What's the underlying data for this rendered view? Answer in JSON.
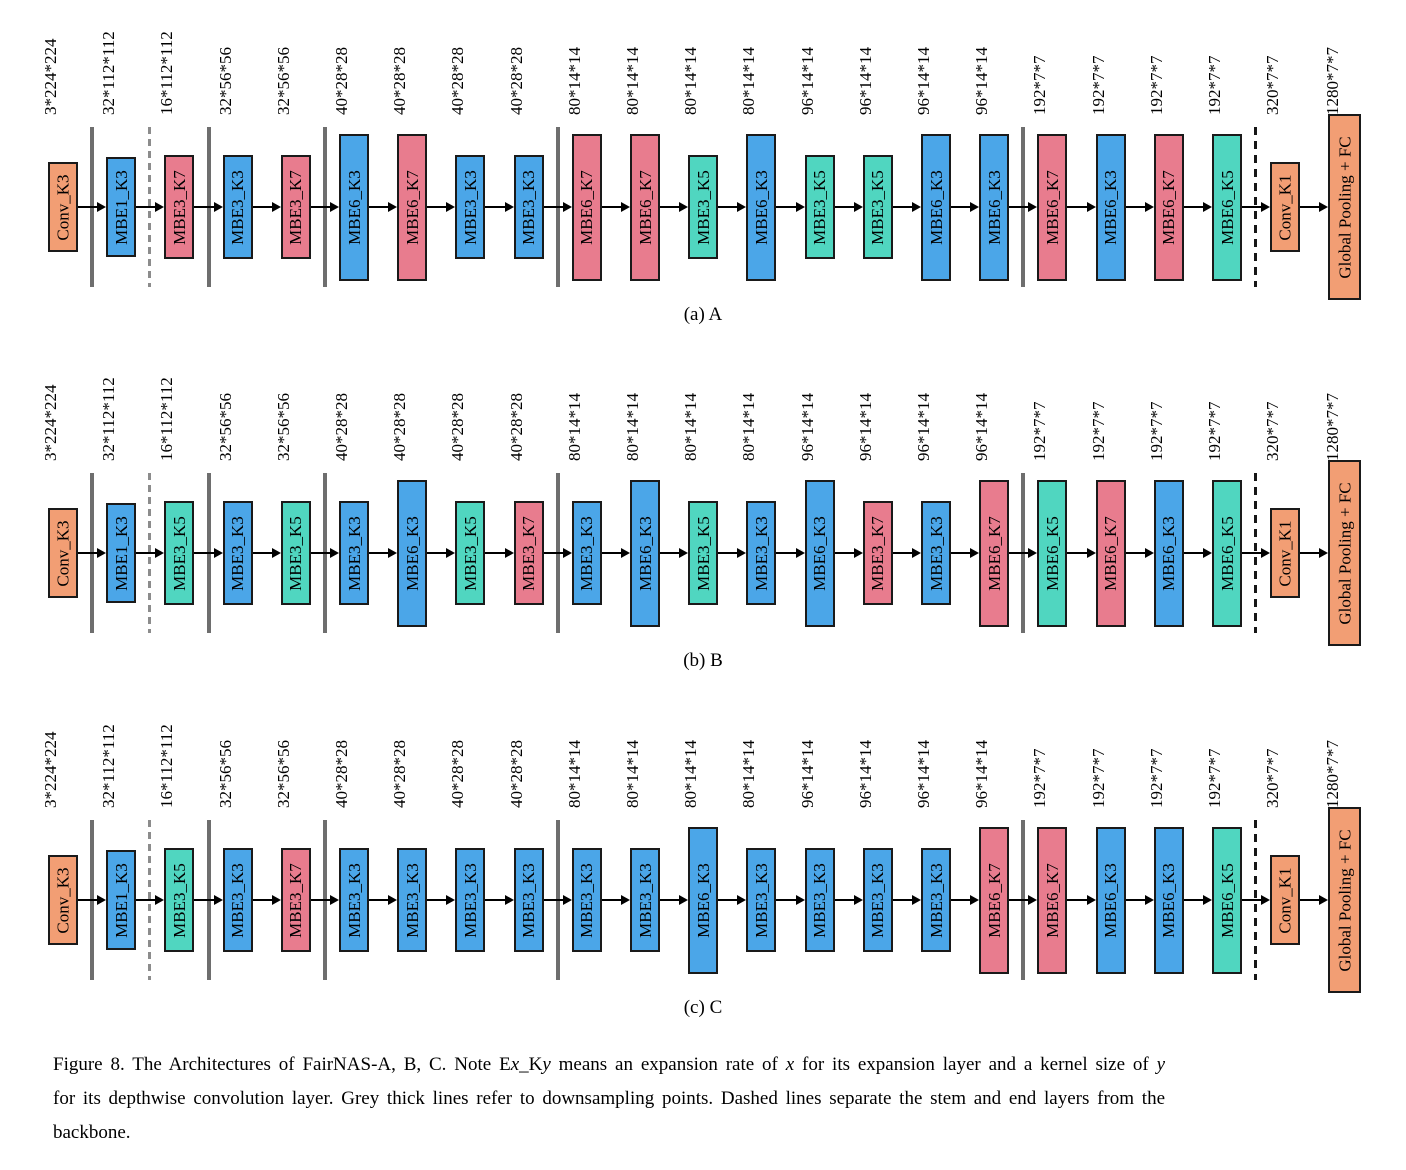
{
  "colors": {
    "orange": "#F29E74",
    "blue": "#4BA6E8",
    "red": "#E87C8E",
    "green": "#50D6C0",
    "block_border": "#1a1a1a",
    "downsample_line": "#6e6e6e",
    "stem_dashed_line": "#8c8c8c",
    "end_dashed_line": "#161616",
    "arrow": "#000000"
  },
  "dim_labels": [
    "3*224*224",
    "32*112*112",
    "16*112*112",
    "32*56*56",
    "32*56*56",
    "40*28*28",
    "40*28*28",
    "40*28*28",
    "40*28*28",
    "80*14*14",
    "80*14*14",
    "80*14*14",
    "80*14*14",
    "96*14*14",
    "96*14*14",
    "96*14*14",
    "96*14*14",
    "192*7*7",
    "192*7*7",
    "192*7*7",
    "192*7*7",
    "320*7*7",
    "1280*7*7"
  ],
  "separators": [
    {
      "after": 1,
      "style": "solid"
    },
    {
      "after": 2,
      "style": "dashed-grey"
    },
    {
      "after": 3,
      "style": "solid"
    },
    {
      "after": 5,
      "style": "solid"
    },
    {
      "after": 9,
      "style": "solid"
    },
    {
      "after": 17,
      "style": "solid"
    },
    {
      "after": 21,
      "style": "dashed-black"
    }
  ],
  "rows": [
    {
      "id": "a",
      "caption": "(a) A",
      "blocks": [
        "Conv_K3",
        "MBE1_K3",
        "MBE3_K7",
        "MBE3_K3",
        "MBE3_K7",
        "MBE6_K3",
        "MBE6_K7",
        "MBE3_K3",
        "MBE3_K3",
        "MBE6_K7",
        "MBE6_K7",
        "MBE3_K5",
        "MBE6_K3",
        "MBE3_K5",
        "MBE3_K5",
        "MBE6_K3",
        "MBE6_K3",
        "MBE6_K7",
        "MBE6_K3",
        "MBE6_K7",
        "MBE6_K5",
        "Conv_K1",
        "Global Pooling + FC"
      ]
    },
    {
      "id": "b",
      "caption": "(b) B",
      "blocks": [
        "Conv_K3",
        "MBE1_K3",
        "MBE3_K5",
        "MBE3_K3",
        "MBE3_K5",
        "MBE3_K3",
        "MBE6_K3",
        "MBE3_K5",
        "MBE3_K7",
        "MBE3_K3",
        "MBE6_K3",
        "MBE3_K5",
        "MBE3_K3",
        "MBE6_K3",
        "MBE3_K7",
        "MBE3_K3",
        "MBE6_K7",
        "MBE6_K5",
        "MBE6_K7",
        "MBE6_K3",
        "MBE6_K5",
        "Conv_K1",
        "Global Pooling + FC"
      ]
    },
    {
      "id": "c",
      "caption": "(c) C",
      "blocks": [
        "Conv_K3",
        "MBE1_K3",
        "MBE3_K5",
        "MBE3_K3",
        "MBE3_K7",
        "MBE3_K3",
        "MBE3_K3",
        "MBE3_K3",
        "MBE3_K3",
        "MBE3_K3",
        "MBE3_K3",
        "MBE6_K3",
        "MBE3_K3",
        "MBE3_K3",
        "MBE3_K3",
        "MBE3_K3",
        "MBE6_K7",
        "MBE6_K7",
        "MBE6_K3",
        "MBE6_K3",
        "MBE6_K5",
        "Conv_K1",
        "Global Pooling + FC"
      ]
    }
  ],
  "caption": {
    "lines": [
      [
        {
          "text": "Figure 8. The Architectures of FairNAS-A, B, C. Note E",
          "italic": false
        },
        {
          "text": "x",
          "italic": true
        },
        {
          "text": "_K",
          "italic": false
        },
        {
          "text": "y",
          "italic": true
        },
        {
          "text": " means an expansion rate of ",
          "italic": false
        },
        {
          "text": "x",
          "italic": true
        },
        {
          "text": " for its expansion layer and a kernel size of ",
          "italic": false
        },
        {
          "text": "y",
          "italic": true
        }
      ],
      [
        {
          "text": "for its depthwise convolution layer. Grey thick lines refer to downsampling points. Dashed lines separate the stem and end layers from the",
          "italic": false
        }
      ],
      [
        {
          "text": "backbone.",
          "italic": false
        }
      ]
    ]
  }
}
